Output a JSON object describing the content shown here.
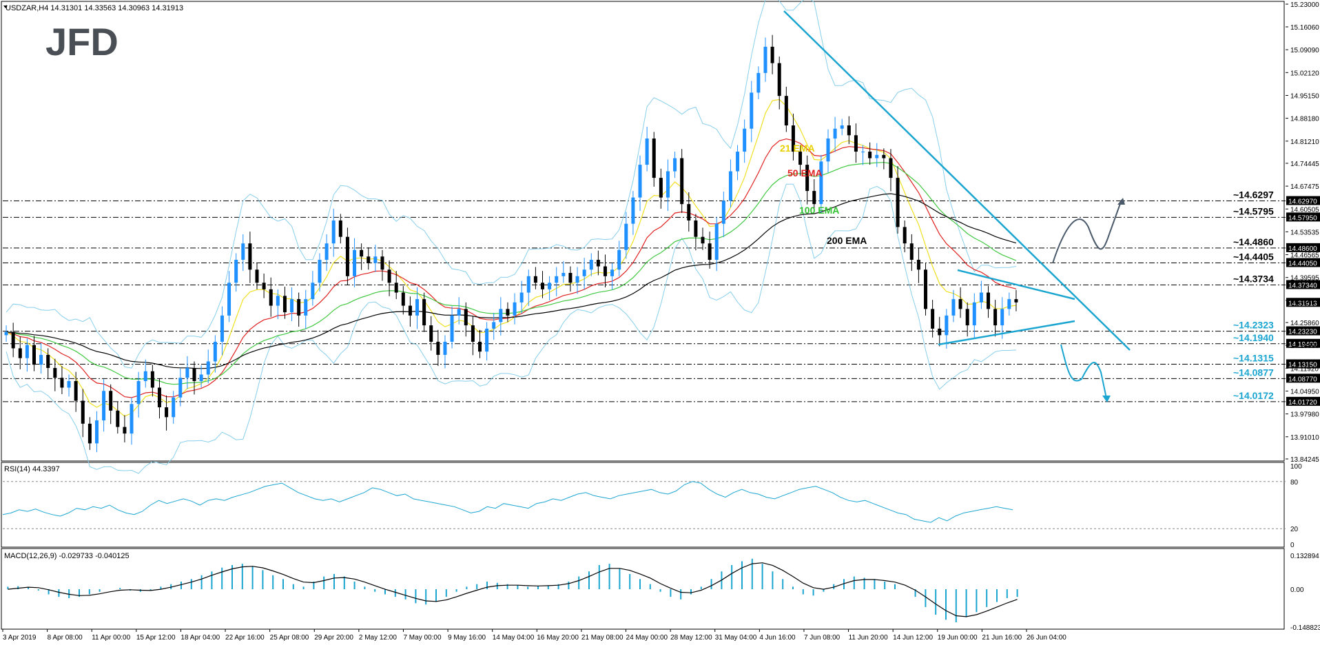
{
  "header": {
    "symbol": "USDZAR,H4",
    "ohlc": "14.31301 14.33563 14.30963 14.31913"
  },
  "logo": "JFD",
  "colors": {
    "up": "#1e90ff",
    "down": "#000000",
    "ema21": "#f0e020",
    "ema50": "#e02020",
    "ema100": "#40c840",
    "ema200": "#000000",
    "bands": "#87ceeb",
    "trend": "#1aa5d1",
    "scenario_up": "#4a5a6a",
    "scenario_down": "#1aa5d1"
  },
  "chart_data": [
    {
      "type": "candlestick",
      "title": "",
      "ylim": [
        13.84245,
        15.23
      ],
      "y_axis_ticks": [
        "15.23000",
        "15.16060",
        "15.09090",
        "15.02120",
        "14.95150",
        "14.88180",
        "14.81210",
        "14.74445",
        "14.67475",
        "14.60505",
        "14.53535",
        "14.46565",
        "14.39595",
        "14.32625",
        "14.25860",
        "14.18890",
        "14.11920",
        "14.04950",
        "13.97980",
        "13.91010",
        "13.84245"
      ],
      "x_axis_ticks": [
        "3 Apr 2019",
        "8 Apr 08:00",
        "11 Apr 00:00",
        "15 Apr 12:00",
        "18 Apr 04:00",
        "22 Apr 16:00",
        "25 Apr 08:00",
        "29 Apr 20:00",
        "2 May 12:00",
        "7 May 00:00",
        "9 May 16:00",
        "14 May 04:00",
        "16 May 20:00",
        "21 May 08:00",
        "24 May 00:00",
        "28 May 12:00",
        "31 May 04:00",
        "4 Jun 16:00",
        "7 Jun 08:00",
        "11 Jun 20:00",
        "14 Jun 12:00",
        "19 Jun 00:00",
        "21 Jun 16:00",
        "26 Jun 04:00"
      ],
      "levels": [
        {
          "label": "~14.6297",
          "value": 14.6297,
          "price_tag": "14.62970",
          "color": "#000000"
        },
        {
          "label": "~14.5795",
          "value": 14.5795,
          "price_tag": "14.57950",
          "color": "#000000"
        },
        {
          "label": "~14.4860",
          "value": 14.486,
          "price_tag": "14.48600",
          "color": "#000000"
        },
        {
          "label": "~14.4405",
          "value": 14.4405,
          "price_tag": "14.44050",
          "color": "#000000"
        },
        {
          "label": "~14.3734",
          "value": 14.3734,
          "price_tag": "14.37340",
          "color": "#000000"
        },
        {
          "label": "~14.2323",
          "value": 14.2323,
          "price_tag": "14.23230",
          "color": "#1aa5d1"
        },
        {
          "label": "~14.1940",
          "value": 14.194,
          "price_tag": "14.19400",
          "color": "#1aa5d1"
        },
        {
          "label": "~14.1315",
          "value": 14.1315,
          "price_tag": "14.13150",
          "color": "#1aa5d1"
        },
        {
          "label": "~14.0877",
          "value": 14.0877,
          "price_tag": "14.08770",
          "color": "#1aa5d1"
        },
        {
          "label": "~14.0172",
          "value": 14.0172,
          "price_tag": "14.01720",
          "color": "#1aa5d1"
        }
      ],
      "current_price": "14.31913",
      "ema_labels": [
        {
          "text": "21 EMA",
          "color": "#e8d000"
        },
        {
          "text": "50 EMA",
          "color": "#e02020"
        },
        {
          "text": "100 EMA",
          "color": "#30c030"
        },
        {
          "text": "200 EMA",
          "color": "#000000"
        }
      ],
      "close_path": [
        14.23,
        14.18,
        14.15,
        14.19,
        14.13,
        14.16,
        14.12,
        14.09,
        14.06,
        14.08,
        14.02,
        13.95,
        13.89,
        13.96,
        14.05,
        13.99,
        13.94,
        13.92,
        14.01,
        14.08,
        14.11,
        14.06,
        14.0,
        13.97,
        14.03,
        14.09,
        14.12,
        14.08,
        14.1,
        14.14,
        14.2,
        14.28,
        14.38,
        14.45,
        14.5,
        14.42,
        14.38,
        14.36,
        14.31,
        14.34,
        14.29,
        14.33,
        14.28,
        14.33,
        14.38,
        14.45,
        14.5,
        14.57,
        14.52,
        14.4,
        14.48,
        14.46,
        14.44,
        14.46,
        14.42,
        14.38,
        14.35,
        14.31,
        14.28,
        14.33,
        14.25,
        14.2,
        14.16,
        14.2,
        14.28,
        14.3,
        14.25,
        14.2,
        14.17,
        14.24,
        14.26,
        14.3,
        14.28,
        14.32,
        14.35,
        14.4,
        14.38,
        14.36,
        14.38,
        14.4,
        14.41,
        14.38,
        14.4,
        14.42,
        14.45,
        14.43,
        14.4,
        14.42,
        14.48,
        14.56,
        14.64,
        14.74,
        14.82,
        14.7,
        14.64,
        14.72,
        14.76,
        14.62,
        14.57,
        14.52,
        14.5,
        14.45,
        14.56,
        14.63,
        14.72,
        14.78,
        14.85,
        14.96,
        15.02,
        15.1,
        15.05,
        14.95,
        14.86,
        14.78,
        14.74,
        14.66,
        14.62,
        14.75,
        14.82,
        14.85,
        14.86,
        14.83,
        14.78,
        14.78,
        14.76,
        14.77,
        14.76,
        14.7,
        14.55,
        14.5,
        14.45,
        14.42,
        14.3,
        14.24,
        14.22,
        14.28,
        14.33,
        14.3,
        14.25,
        14.32,
        14.35,
        14.3,
        14.25,
        14.3,
        14.33,
        14.32
      ],
      "rsi": {
        "label": "RSI(14) 44.3397",
        "ticks": [
          "100",
          "80",
          "20",
          "0"
        ],
        "values": [
          38,
          40,
          44,
          42,
          45,
          41,
          38,
          36,
          40,
          46,
          44,
          48,
          46,
          50,
          44,
          40,
          38,
          42,
          50,
          56,
          52,
          55,
          58,
          55,
          50,
          56,
          58,
          56,
          60,
          63,
          66,
          70,
          74,
          76,
          78,
          72,
          66,
          62,
          58,
          56,
          58,
          54,
          58,
          62,
          66,
          72,
          70,
          66,
          62,
          64,
          58,
          56,
          54,
          52,
          50,
          48,
          44,
          40,
          42,
          48,
          46,
          52,
          50,
          48,
          46,
          52,
          54,
          58,
          56,
          60,
          64,
          66,
          62,
          60,
          58,
          62,
          64,
          66,
          68,
          70,
          66,
          64,
          68,
          76,
          80,
          78,
          70,
          64,
          60,
          66,
          70,
          66,
          64,
          60,
          58,
          62,
          66,
          70,
          72,
          74,
          70,
          66,
          60,
          56,
          54,
          56,
          52,
          48,
          44,
          40,
          38,
          32,
          30,
          28,
          34,
          30,
          36,
          40,
          42,
          44,
          46,
          48,
          46,
          44
        ]
      },
      "macd": {
        "label": "MACD(12,26,9) -0.029733 -0.040125",
        "ticks": [
          "0.132894",
          "0.00",
          "-0.148823"
        ],
        "hist": [
          0.01,
          0.012,
          0.008,
          -0.005,
          -0.02,
          -0.03,
          -0.035,
          -0.03,
          -0.02,
          -0.01,
          0.0,
          0.005,
          -0.005,
          -0.01,
          -0.005,
          0.01,
          0.02,
          0.03,
          0.04,
          0.055,
          0.07,
          0.085,
          0.095,
          0.1,
          0.09,
          0.075,
          0.055,
          0.04,
          0.02,
          0.01,
          0.03,
          0.05,
          0.06,
          0.05,
          0.03,
          0.01,
          -0.01,
          -0.02,
          -0.03,
          -0.04,
          -0.055,
          -0.06,
          -0.05,
          -0.03,
          -0.01,
          0.01,
          0.02,
          0.03,
          0.025,
          0.02,
          0.015,
          0.01,
          0.012,
          0.015,
          0.02,
          0.03,
          0.05,
          0.07,
          0.095,
          0.1,
          0.08,
          0.06,
          0.04,
          0.02,
          -0.01,
          -0.03,
          -0.04,
          -0.02,
          0.01,
          0.04,
          0.07,
          0.095,
          0.11,
          0.12,
          0.1,
          0.07,
          0.04,
          0.01,
          -0.02,
          -0.025,
          -0.01,
          0.02,
          0.04,
          0.05,
          0.045,
          0.04,
          0.03,
          0.02,
          0.0,
          -0.03,
          -0.07,
          -0.1,
          -0.12,
          -0.13,
          -0.11,
          -0.09,
          -0.07,
          -0.05,
          -0.035,
          -0.03
        ],
        "signal": [
          0.0,
          0.004,
          0.008,
          0.006,
          -0.002,
          -0.012,
          -0.02,
          -0.025,
          -0.024,
          -0.018,
          -0.01,
          -0.004,
          -0.002,
          -0.004,
          -0.005,
          0.0,
          0.008,
          0.018,
          0.028,
          0.04,
          0.055,
          0.068,
          0.08,
          0.088,
          0.09,
          0.084,
          0.072,
          0.058,
          0.042,
          0.028,
          0.026,
          0.034,
          0.044,
          0.046,
          0.04,
          0.028,
          0.014,
          0.0,
          -0.012,
          -0.024,
          -0.036,
          -0.046,
          -0.048,
          -0.042,
          -0.03,
          -0.016,
          -0.004,
          0.008,
          0.014,
          0.016,
          0.016,
          0.014,
          0.013,
          0.014,
          0.016,
          0.022,
          0.034,
          0.05,
          0.068,
          0.082,
          0.082,
          0.074,
          0.06,
          0.044,
          0.022,
          0.004,
          -0.012,
          -0.014,
          -0.004,
          0.014,
          0.036,
          0.062,
          0.084,
          0.1,
          0.104,
          0.094,
          0.074,
          0.05,
          0.024,
          0.006,
          0.0,
          0.008,
          0.022,
          0.034,
          0.038,
          0.038,
          0.034,
          0.028,
          0.016,
          -0.004,
          -0.03,
          -0.058,
          -0.084,
          -0.104,
          -0.108,
          -0.1,
          -0.086,
          -0.07,
          -0.054,
          -0.04
        ]
      }
    }
  ]
}
